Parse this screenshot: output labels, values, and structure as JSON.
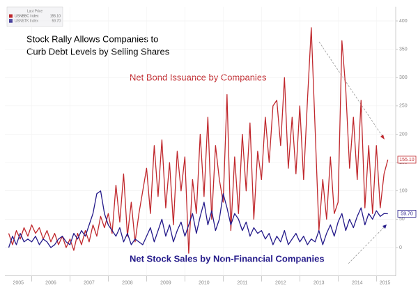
{
  "chart_data": {
    "type": "line",
    "title": "Stock Rally Allows Companies to",
    "subtitle": "Curb Debt Levels by Selling Shares",
    "legend_title": "Last Price",
    "annotations": [
      "Net Bond Issuance by Companies",
      "Net Stock Sales by Non-Financial Companies"
    ],
    "x": [
      2005.4,
      2005.5,
      2005.6,
      2005.7,
      2005.8,
      2005.9,
      2006.0,
      2006.1,
      2006.2,
      2006.3,
      2006.4,
      2006.5,
      2006.6,
      2006.7,
      2006.8,
      2006.9,
      2007.0,
      2007.1,
      2007.2,
      2007.3,
      2007.4,
      2007.5,
      2007.6,
      2007.7,
      2007.8,
      2007.9,
      2008.0,
      2008.1,
      2008.2,
      2008.3,
      2008.4,
      2008.5,
      2008.6,
      2008.7,
      2008.8,
      2008.9,
      2009.0,
      2009.1,
      2009.2,
      2009.3,
      2009.4,
      2009.5,
      2009.6,
      2009.7,
      2009.8,
      2009.9,
      2010.0,
      2010.1,
      2010.2,
      2010.3,
      2010.4,
      2010.5,
      2010.6,
      2010.7,
      2010.8,
      2010.9,
      2011.0,
      2011.1,
      2011.2,
      2011.3,
      2011.4,
      2011.5,
      2011.6,
      2011.7,
      2011.8,
      2011.9,
      2012.0,
      2012.1,
      2012.2,
      2012.3,
      2012.4,
      2012.5,
      2012.6,
      2012.7,
      2012.8,
      2012.9,
      2013.0,
      2013.1,
      2013.2,
      2013.3,
      2013.4,
      2013.5,
      2013.6,
      2013.7,
      2013.8,
      2013.9,
      2014.0,
      2014.1,
      2014.2,
      2014.3,
      2014.4,
      2014.5,
      2014.6,
      2014.7,
      2014.8,
      2014.9,
      2015.0,
      2015.1,
      2015.2,
      2015.3
    ],
    "series": [
      {
        "name": "USNBBC Index",
        "color": "#c0282d",
        "last_label": "155.10",
        "values": [
          25,
          5,
          30,
          15,
          35,
          20,
          40,
          25,
          35,
          15,
          30,
          10,
          25,
          5,
          20,
          0,
          15,
          -5,
          25,
          5,
          30,
          10,
          40,
          20,
          55,
          35,
          60,
          25,
          110,
          45,
          130,
          20,
          80,
          10,
          60,
          100,
          140,
          60,
          180,
          90,
          190,
          70,
          150,
          40,
          170,
          100,
          160,
          -10,
          120,
          60,
          200,
          90,
          230,
          50,
          180,
          120,
          80,
          270,
          30,
          160,
          60,
          200,
          100,
          220,
          50,
          170,
          120,
          230,
          150,
          250,
          260,
          180,
          300,
          140,
          230,
          130,
          250,
          120,
          260,
          388,
          210,
          30,
          120,
          50,
          160,
          60,
          80,
          365,
          280,
          140,
          230,
          120,
          260,
          70,
          180,
          60,
          180,
          70,
          130,
          155.1
        ]
      },
      {
        "name": "USNSTK Index",
        "color": "#241a8a",
        "last_label": "59.70",
        "values": [
          0,
          20,
          5,
          25,
          10,
          15,
          10,
          20,
          5,
          15,
          10,
          0,
          5,
          15,
          20,
          10,
          5,
          25,
          15,
          30,
          20,
          40,
          60,
          95,
          100,
          60,
          40,
          30,
          20,
          35,
          10,
          25,
          5,
          15,
          10,
          5,
          20,
          35,
          10,
          30,
          50,
          20,
          40,
          10,
          30,
          45,
          20,
          40,
          60,
          25,
          55,
          80,
          40,
          65,
          30,
          50,
          95,
          70,
          40,
          60,
          50,
          30,
          45,
          20,
          35,
          25,
          30,
          15,
          25,
          5,
          20,
          10,
          30,
          5,
          15,
          25,
          10,
          20,
          5,
          15,
          10,
          30,
          5,
          25,
          40,
          20,
          45,
          60,
          30,
          50,
          35,
          55,
          70,
          40,
          60,
          50,
          65,
          55,
          60,
          59.7
        ]
      }
    ],
    "xlim": [
      2005.3,
      2015.45
    ],
    "xticks": [
      2005,
      2006,
      2007,
      2008,
      2009,
      2010,
      2011,
      2012,
      2013,
      2014,
      2015
    ],
    "ylim": [
      -50,
      425
    ],
    "yticks": [
      0,
      50,
      100,
      150,
      200,
      250,
      300,
      350,
      400
    ],
    "grid": true
  }
}
